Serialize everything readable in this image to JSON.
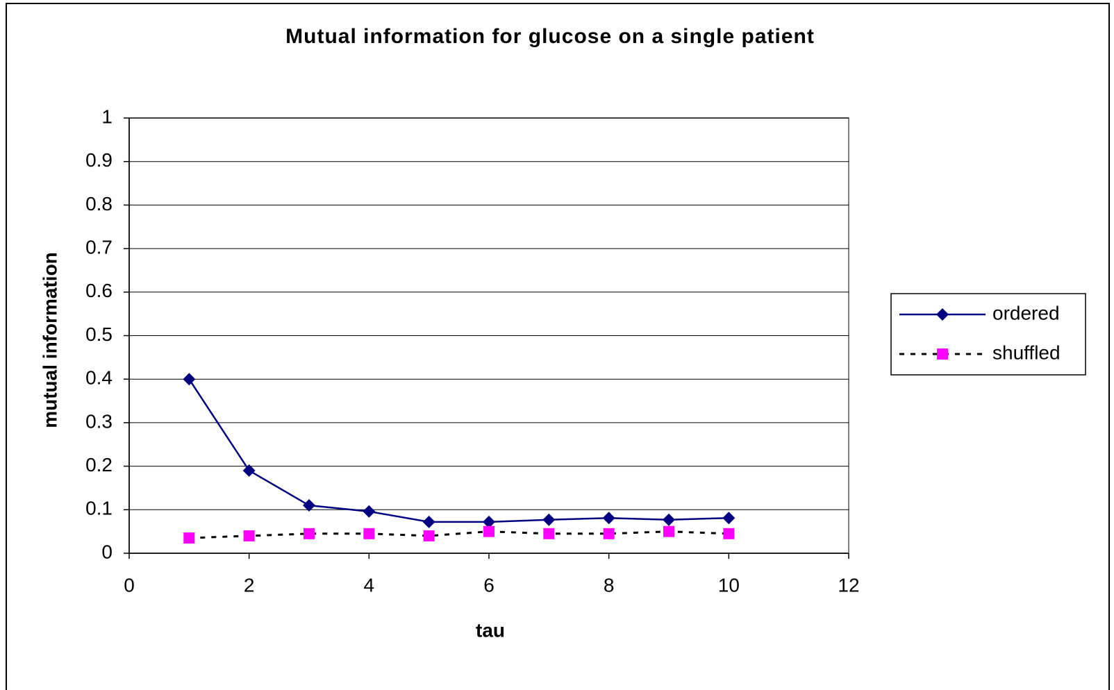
{
  "chart_data": {
    "type": "line",
    "title": "Mutual information for glucose on a single patient",
    "x_label": "tau",
    "y_label": "mutual information",
    "x": [
      1,
      2,
      3,
      4,
      5,
      6,
      7,
      8,
      9,
      10
    ],
    "series": [
      {
        "name": "ordered",
        "color": "#000080",
        "marker": "diamond",
        "line": "solid",
        "values": [
          0.4,
          0.19,
          0.11,
          0.096,
          0.072,
          0.072,
          0.077,
          0.081,
          0.077,
          0.081
        ]
      },
      {
        "name": "shuffled",
        "color": "#ff00ff",
        "marker": "square",
        "line": "dotted",
        "values": [
          0.035,
          0.04,
          0.045,
          0.045,
          0.04,
          0.05,
          0.045,
          0.045,
          0.05,
          0.045
        ]
      }
    ],
    "xlim": [
      0,
      12
    ],
    "xticks": [
      0,
      2,
      4,
      6,
      8,
      10,
      12
    ],
    "ylim": [
      0,
      1
    ],
    "yticks": [
      0,
      0.1,
      0.2,
      0.3,
      0.4,
      0.5,
      0.6,
      0.7,
      0.8,
      0.9,
      1
    ],
    "grid": true,
    "legend": "right"
  }
}
